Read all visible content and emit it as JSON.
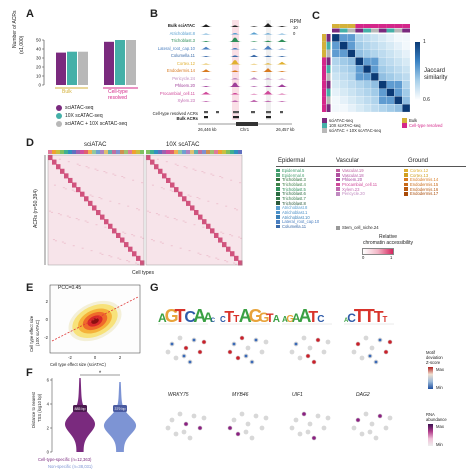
{
  "panels": {
    "A": "A",
    "B": "B",
    "C": "C",
    "D": "D",
    "E": "E",
    "F": "F",
    "G": "G"
  },
  "colors": {
    "sci": "#7a2a7e",
    "tenx": "#45b0a8",
    "combo": "#b8b8b8",
    "gold": "#d4b13a",
    "pink": "#d4278a"
  },
  "panelA": {
    "ylabel": "Number of ACRs",
    "yunit": "(x1,000)",
    "yticks": [
      "0",
      "10",
      "20",
      "30",
      "40",
      "50"
    ],
    "group_bulk": "Bulk",
    "group_celltype": "Cell-type",
    "group_celltype2": "resolved",
    "legend": [
      "sciATAC-seq",
      "10X scATAC-seq",
      "sciATAC + 10X scATAC-seq"
    ]
  },
  "chart_data": {
    "type": "bar",
    "categories": [
      "Bulk",
      "Cell-type resolved"
    ],
    "series": [
      {
        "name": "sciATAC-seq",
        "values": [
          36,
          48
        ]
      },
      {
        "name": "10X scATAC-seq",
        "values": [
          37,
          50
        ]
      },
      {
        "name": "sciATAC + 10X scATAC-seq",
        "values": [
          37,
          50
        ]
      }
    ],
    "ylabel": "Number of ACRs (x1,000)",
    "ylim": [
      0,
      50
    ]
  },
  "panelB": {
    "rpm": "RPM",
    "rpm_max": "10",
    "rpm_min": "0",
    "tracks": [
      {
        "label": "Bulk sciATAC",
        "color": "#222222"
      },
      {
        "label": "Atrichoblast.8",
        "color": "#5aa0d0"
      },
      {
        "label": "Trichoblast.3",
        "color": "#2f8f5a"
      },
      {
        "label": "Lateral_root_cap.10",
        "color": "#4a7fc0"
      },
      {
        "label": "Columella.11",
        "color": "#3a6aa8"
      },
      {
        "label": "Cortex.12",
        "color": "#e0b030"
      },
      {
        "label": "Endodermis.14",
        "color": "#d87a20"
      },
      {
        "label": "Pericycle.24",
        "color": "#c08ac0"
      },
      {
        "label": "Phloem.20",
        "color": "#a0409a"
      },
      {
        "label": "Procambial_cell.11",
        "color": "#d04a9a"
      },
      {
        "label": "Xylem.23",
        "color": "#c06ab0"
      }
    ],
    "ct_acrs": "Cell-type resolved ACRs",
    "bulk_acrs": "Bulk ACRs",
    "coord_left": "26,446 kb",
    "gene": "Chr1",
    "coord_right": "26,457 kb"
  },
  "panelC": {
    "scale_max": "1",
    "scale_min": "0.6",
    "scale_label": "Jaccard",
    "scale_label2": "similarity",
    "legend": [
      "sciATAC-seq",
      "10X scATAC-seq",
      "sciATAC + 10X scATAC-seq",
      "Bulk",
      "Cell-type resolved"
    ]
  },
  "panelD": {
    "title_left": "sciATAC",
    "title_right": "10X scATAC",
    "ylabel": "ACRs (n=50,394)",
    "xlabel": "Cell types",
    "col_heads": [
      "Epidermal",
      "Vascular",
      "Ground"
    ],
    "epidermal": [
      "Epidermal.5",
      "Epidermal.6",
      "Trichoblast.3",
      "Trichoblast.4",
      "Trichoblast.5",
      "Trichoblast.6",
      "Trichoblast.7",
      "Trichoblast.8",
      "Atrichoblast.8",
      "Atrichoblast.1",
      "Atrichoblast.10",
      "Lateral_root_cap.10",
      "Columella.11"
    ],
    "vascular": [
      "Vascular.19",
      "Vascular.18",
      "Phloem.20",
      "Procambial_cell.11",
      "Xylem.23",
      "Pericycle.20"
    ],
    "ground": [
      "Cortex.12",
      "Cortex.13",
      "Endodermis.14",
      "Endodermis.15",
      "Endodermis.16",
      "Endodermis.17"
    ],
    "extra": "Stem_cell_niche.24",
    "scale_title": "Relative",
    "scale_title2": "chromatin accessibility",
    "scale_min": "0",
    "scale_max": "1"
  },
  "panelE": {
    "annot": "PCC=0.45",
    "ylabel": "Cell type effect size",
    "ylabel2": "(10X scATAC)",
    "xlabel": "Cell type effect size (sciATAC)",
    "xticks": [
      "-2",
      "0",
      "2"
    ],
    "yticks": [
      "2",
      "0",
      "-2"
    ]
  },
  "panelF": {
    "ylabel": "Distance to nearest",
    "ylabel2": "TSS (log10 bp)",
    "yticks": [
      "6",
      "4",
      "2",
      "0"
    ],
    "v1_label": "885 bp",
    "v2_label": "379 bp",
    "sig": "*",
    "leg1": "Cell-type-specific (n=12,363)",
    "leg2": "Non-specific (n=38,031)"
  },
  "panelG": {
    "motif_scale_title": "Motif",
    "motif_scale_title2": "deviation",
    "motif_scale_title3": "Z-score",
    "motif_max": "Max",
    "motif_min": "Min",
    "rna_scale_title": "RNA",
    "rna_scale_title2": "abundance",
    "rna_max": "Max",
    "rna_min": "Min",
    "genes": [
      "WRKY75",
      "MYB46",
      "UIF1",
      "DAG2"
    ]
  }
}
